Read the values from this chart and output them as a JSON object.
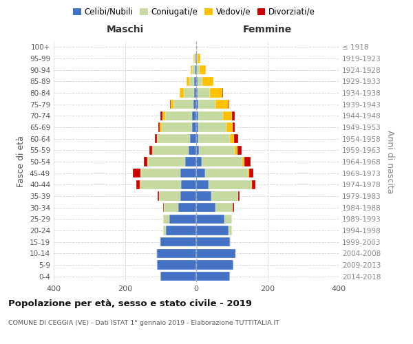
{
  "age_groups": [
    "0-4",
    "5-9",
    "10-14",
    "15-19",
    "20-24",
    "25-29",
    "30-34",
    "35-39",
    "40-44",
    "45-49",
    "50-54",
    "55-59",
    "60-64",
    "65-69",
    "70-74",
    "75-79",
    "80-84",
    "85-89",
    "90-94",
    "95-99",
    "100+"
  ],
  "birth_years": [
    "2014-2018",
    "2009-2013",
    "2004-2008",
    "1999-2003",
    "1994-1998",
    "1989-1993",
    "1984-1988",
    "1979-1983",
    "1974-1978",
    "1969-1973",
    "1964-1968",
    "1959-1963",
    "1954-1958",
    "1949-1953",
    "1944-1948",
    "1939-1943",
    "1934-1938",
    "1929-1933",
    "1924-1928",
    "1919-1923",
    "≤ 1918"
  ],
  "males": {
    "celibi": [
      100,
      110,
      110,
      100,
      85,
      75,
      50,
      45,
      42,
      45,
      30,
      22,
      18,
      12,
      12,
      8,
      5,
      5,
      3,
      2,
      0
    ],
    "coniugati": [
      0,
      0,
      3,
      2,
      8,
      18,
      40,
      60,
      115,
      110,
      105,
      100,
      90,
      85,
      75,
      55,
      30,
      15,
      8,
      3,
      0
    ],
    "vedovi": [
      0,
      0,
      0,
      0,
      0,
      0,
      0,
      0,
      2,
      2,
      2,
      2,
      3,
      5,
      8,
      8,
      12,
      8,
      5,
      3,
      0
    ],
    "divorziati": [
      0,
      0,
      0,
      0,
      0,
      0,
      3,
      3,
      10,
      20,
      10,
      8,
      5,
      5,
      5,
      2,
      0,
      0,
      0,
      0,
      0
    ]
  },
  "females": {
    "celibi": [
      95,
      105,
      110,
      95,
      90,
      80,
      55,
      42,
      35,
      25,
      15,
      8,
      5,
      5,
      5,
      5,
      3,
      3,
      2,
      2,
      0
    ],
    "coniugati": [
      0,
      0,
      3,
      2,
      10,
      20,
      48,
      75,
      120,
      120,
      115,
      100,
      90,
      80,
      70,
      50,
      35,
      15,
      8,
      2,
      0
    ],
    "vedovi": [
      0,
      0,
      0,
      0,
      0,
      0,
      0,
      0,
      2,
      3,
      5,
      8,
      12,
      18,
      25,
      35,
      35,
      30,
      18,
      8,
      0
    ],
    "divorziati": [
      0,
      0,
      0,
      0,
      0,
      0,
      3,
      5,
      10,
      12,
      18,
      12,
      10,
      5,
      8,
      3,
      2,
      0,
      0,
      0,
      0
    ]
  },
  "colors": {
    "celibi": "#4472c4",
    "coniugati": "#c5d9a0",
    "vedovi": "#ffc000",
    "divorziati": "#cc0000"
  },
  "legend_labels": [
    "Celibi/Nubili",
    "Coniugati/e",
    "Vedovi/e",
    "Divorziati/e"
  ],
  "title": "Popolazione per età, sesso e stato civile - 2019",
  "subtitle": "COMUNE DI CEGGIA (VE) - Dati ISTAT 1° gennaio 2019 - Elaborazione TUTTITALIA.IT",
  "xlabel_left": "Maschi",
  "xlabel_right": "Femmine",
  "ylabel_left": "Fasce di età",
  "ylabel_right": "Anni di nascita",
  "xlim": 400,
  "background_color": "#ffffff",
  "grid_color": "#cccccc"
}
